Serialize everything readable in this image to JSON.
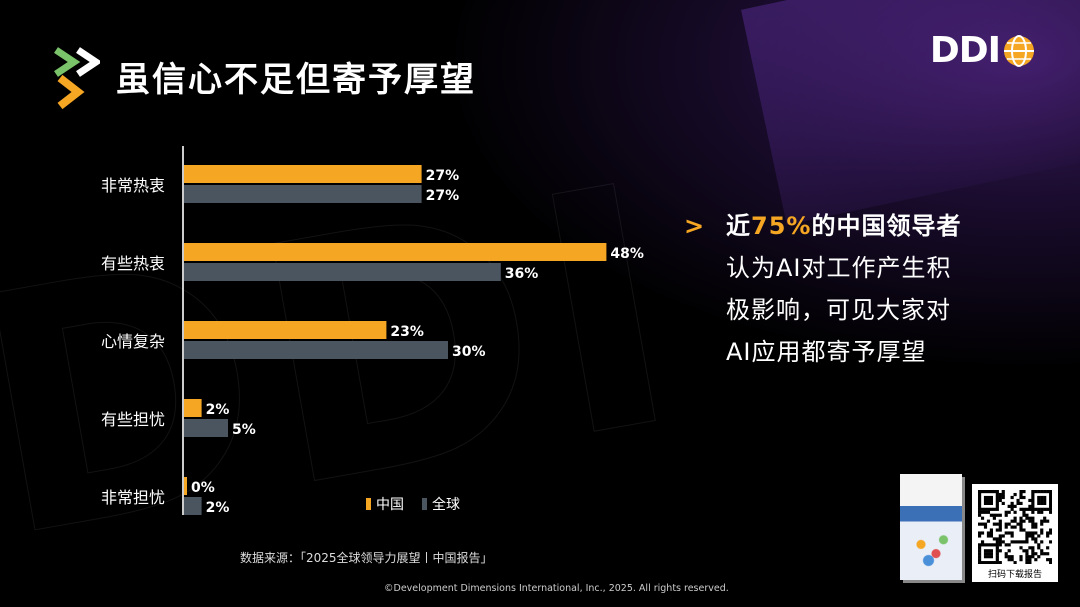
{
  "title": "虽信心不足但寄予厚望",
  "brand": "DDI",
  "chart_data": {
    "type": "bar",
    "orientation": "horizontal",
    "categories": [
      "非常热衷",
      "有些热衷",
      "心情复杂",
      "有些担忧",
      "非常担忧"
    ],
    "series": [
      {
        "name": "中国",
        "color": "#F5A623",
        "values": [
          27,
          48,
          23,
          2,
          0
        ],
        "labels": [
          "27%",
          "48%",
          "23%",
          "2%",
          "0%"
        ]
      },
      {
        "name": "全球",
        "color": "#4A5560",
        "values": [
          27,
          36,
          30,
          5,
          2
        ],
        "labels": [
          "27%",
          "36%",
          "30%",
          "5%",
          "2%"
        ]
      }
    ]
  },
  "callout": {
    "line1_pre": "近",
    "line1_hl": "75%",
    "line1_post": "的中国领导者",
    "line2": "认为AI对工作产生积",
    "line3": "极影响，可见大家对",
    "line4": "AI应用都寄予厚望"
  },
  "source": "数据来源：「2025全球领导力展望丨中国报告」",
  "copyright": "©Development Dimensions International, Inc., 2025. All rights reserved.",
  "qr_label": "扫码下载报告"
}
